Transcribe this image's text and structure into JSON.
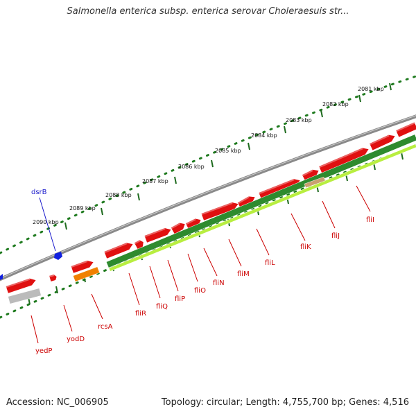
{
  "title": "Salmonella enterica subsp. enterica serovar Choleraesuis str...",
  "footer": {
    "accession": "Accession: NC_006905",
    "summary": "Topology: circular; Length: 4,755,700 bp; Genes: 4,516"
  },
  "colors": {
    "backbone": "#8a8a8a",
    "gene_red": "#e01010",
    "gene_dark_green": "#2e8b2e",
    "gene_light_green": "#b8ee40",
    "gene_orange": "#f08000",
    "gene_gray": "#bbbbbb",
    "gene_blue": "#1020e0",
    "label_red": "#cc0000",
    "label_blue": "#1a1acc",
    "tick_dark_green": "#1f6b1f"
  },
  "scale_labels": [
    "2081 kbp",
    "2082 kbp",
    "2083 kbp",
    "2084 kbp",
    "2085 kbp",
    "2086 kbp",
    "2087 kbp",
    "2088 kbp",
    "2089 kbp",
    "2090 kbp"
  ],
  "gene_labels": [
    {
      "text": "dsrB",
      "color": "blue"
    },
    {
      "text": "yedP",
      "color": "red"
    },
    {
      "text": "yodD",
      "color": "red"
    },
    {
      "text": "rcsA",
      "color": "red"
    },
    {
      "text": "fliR",
      "color": "red"
    },
    {
      "text": "fliQ",
      "color": "red"
    },
    {
      "text": "fliP",
      "color": "red"
    },
    {
      "text": "fliO",
      "color": "red"
    },
    {
      "text": "fliN",
      "color": "red"
    },
    {
      "text": "fliM",
      "color": "red"
    },
    {
      "text": "fliL",
      "color": "red"
    },
    {
      "text": "fliK",
      "color": "red"
    },
    {
      "text": "fliJ",
      "color": "red"
    },
    {
      "text": "fliI",
      "color": "red"
    }
  ]
}
